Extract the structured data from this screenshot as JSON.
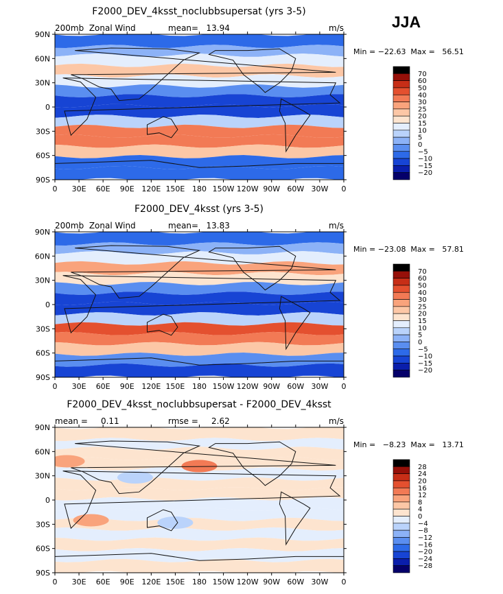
{
  "season": "JJA",
  "chart_data": [
    {
      "type": "heatmap",
      "title": "F2000_DEV_4ksst_noclubbsupersat (yrs 3-5)",
      "left_label": "200mb  Zonal Wind",
      "center_label": "mean=   13.94",
      "units": "m/s",
      "stats": "Min = −22.63  Max =   56.51",
      "x_ticks": [
        "0",
        "30E",
        "60E",
        "90E",
        "120E",
        "150E",
        "180",
        "150W",
        "120W",
        "90W",
        "60W",
        "30W",
        "0"
      ],
      "y_ticks": [
        "90N",
        "60N",
        "30N",
        "0",
        "30S",
        "60S",
        "90S"
      ],
      "xlim": [
        0,
        360
      ],
      "ylim": [
        -90,
        90
      ],
      "colorbar": [
        "70",
        "60",
        "50",
        "40",
        "30",
        "25",
        "20",
        "15",
        "10",
        "5",
        "0",
        "−5",
        "−10",
        "−15",
        "−20"
      ],
      "bands": [
        {
          "lat": 80,
          "value": -8
        },
        {
          "lat": 70,
          "value": 3
        },
        {
          "lat": 58,
          "value": 12
        },
        {
          "lat": 45,
          "value": 24
        },
        {
          "lat": 32,
          "value": 14
        },
        {
          "lat": 20,
          "value": -4
        },
        {
          "lat": 8,
          "value": -14
        },
        {
          "lat": -5,
          "value": -12
        },
        {
          "lat": -18,
          "value": 8
        },
        {
          "lat": -30,
          "value": 38
        },
        {
          "lat": -42,
          "value": 33
        },
        {
          "lat": -55,
          "value": 22
        },
        {
          "lat": -68,
          "value": -6
        },
        {
          "lat": -82,
          "value": -10
        }
      ]
    },
    {
      "type": "heatmap",
      "title": "F2000_DEV_4ksst (yrs 3-5)",
      "left_label": "200mb  Zonal Wind",
      "center_label": "mean=   13.83",
      "units": "m/s",
      "stats": "Min = −23.08  Max =   57.81",
      "x_ticks": [
        "0",
        "30E",
        "60E",
        "90E",
        "120E",
        "150E",
        "180",
        "150W",
        "120W",
        "90W",
        "60W",
        "30W",
        "0"
      ],
      "y_ticks": [
        "90N",
        "60N",
        "30N",
        "0",
        "30S",
        "60S",
        "90S"
      ],
      "xlim": [
        0,
        360
      ],
      "ylim": [
        -90,
        90
      ],
      "colorbar": [
        "70",
        "60",
        "50",
        "40",
        "30",
        "25",
        "20",
        "15",
        "10",
        "5",
        "0",
        "−5",
        "−10",
        "−15",
        "−20"
      ],
      "bands": [
        {
          "lat": 80,
          "value": -9
        },
        {
          "lat": 70,
          "value": 2
        },
        {
          "lat": 58,
          "value": 13
        },
        {
          "lat": 45,
          "value": 25
        },
        {
          "lat": 32,
          "value": 16
        },
        {
          "lat": 20,
          "value": -3
        },
        {
          "lat": 8,
          "value": -15
        },
        {
          "lat": -5,
          "value": -12
        },
        {
          "lat": -18,
          "value": 9
        },
        {
          "lat": -30,
          "value": 40
        },
        {
          "lat": -42,
          "value": 34
        },
        {
          "lat": -55,
          "value": 21
        },
        {
          "lat": -68,
          "value": -5
        },
        {
          "lat": -82,
          "value": -11
        }
      ]
    },
    {
      "type": "heatmap",
      "title": "F2000_DEV_4ksst_noclubbsupersat - F2000_DEV_4ksst",
      "left_label": "mean =     0.11",
      "center_label": "rmse =     2.62",
      "units": "m/s",
      "stats": "Min =   −8.23  Max =   13.71",
      "x_ticks": [
        "0",
        "30E",
        "60E",
        "90E",
        "120E",
        "150E",
        "180",
        "150W",
        "120W",
        "90W",
        "60W",
        "30W",
        "0"
      ],
      "y_ticks": [
        "90N",
        "60N",
        "30N",
        "0",
        "30S",
        "60S",
        "90S"
      ],
      "xlim": [
        0,
        360
      ],
      "ylim": [
        -90,
        90
      ],
      "colorbar": [
        "28",
        "24",
        "20",
        "16",
        "12",
        "8",
        "4",
        "0",
        "−4",
        "−8",
        "−12",
        "−16",
        "−20",
        "−24",
        "−28"
      ],
      "bands": [
        {
          "lat": 80,
          "value": 1
        },
        {
          "lat": 70,
          "value": -2
        },
        {
          "lat": 58,
          "value": 2
        },
        {
          "lat": 45,
          "value": 1
        },
        {
          "lat": 32,
          "value": -3
        },
        {
          "lat": 20,
          "value": 1
        },
        {
          "lat": 8,
          "value": 1
        },
        {
          "lat": -5,
          "value": -2
        },
        {
          "lat": -18,
          "value": -1
        },
        {
          "lat": -30,
          "value": 1
        },
        {
          "lat": -42,
          "value": -2
        },
        {
          "lat": -55,
          "value": 1
        },
        {
          "lat": -68,
          "value": -1
        },
        {
          "lat": -82,
          "value": 1
        }
      ],
      "anomalies": [
        {
          "lon": 180,
          "lat": 42,
          "value": 12
        },
        {
          "lon": 15,
          "lat": 48,
          "value": 9
        },
        {
          "lon": 45,
          "lat": -25,
          "value": 8
        },
        {
          "lon": 150,
          "lat": -28,
          "value": -6
        },
        {
          "lon": 100,
          "lat": 28,
          "value": -5
        }
      ]
    }
  ],
  "colors": {
    "scale": [
      "#05006a",
      "#0a1eab",
      "#1744d4",
      "#2d6ae8",
      "#5a8ef0",
      "#8cb2f7",
      "#bad3fb",
      "#e4eefd",
      "#fde4cf",
      "#fcc7a6",
      "#f9a37c",
      "#f27a55",
      "#e4502f",
      "#c72e17",
      "#961009"
    ]
  }
}
